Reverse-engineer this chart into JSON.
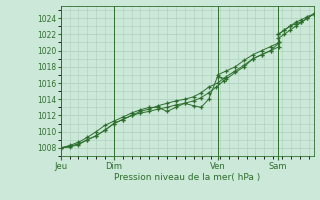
{
  "background_color": "#cce8d8",
  "grid_color": "#aacfba",
  "line_color": "#2d6e2d",
  "xlabel": "Pression niveau de la mer( hPa )",
  "ylim": [
    1007,
    1025.5
  ],
  "yticks": [
    1008,
    1010,
    1012,
    1014,
    1016,
    1018,
    1020,
    1022,
    1024
  ],
  "day_labels": [
    "Jeu",
    "Dim",
    "Ven",
    "Sam"
  ],
  "day_positions": [
    0.0,
    0.21,
    0.62,
    0.86
  ],
  "xlim": [
    0.0,
    1.0
  ],
  "series1_x": [
    0.0,
    0.035,
    0.07,
    0.105,
    0.14,
    0.175,
    0.21,
    0.245,
    0.28,
    0.315,
    0.35,
    0.385,
    0.42,
    0.455,
    0.49,
    0.525,
    0.555,
    0.585,
    0.615,
    0.645,
    0.62,
    0.655,
    0.69,
    0.725,
    0.76,
    0.795,
    0.83,
    0.865,
    0.86,
    0.883,
    0.906,
    0.929,
    0.952,
    0.975,
    1.0
  ],
  "series1_y": [
    1008.0,
    1008.2,
    1008.5,
    1009.0,
    1009.5,
    1010.2,
    1011.0,
    1011.5,
    1012.0,
    1012.3,
    1012.5,
    1012.8,
    1013.0,
    1013.3,
    1013.5,
    1013.8,
    1014.2,
    1014.8,
    1015.5,
    1016.3,
    1017.0,
    1017.5,
    1018.0,
    1018.8,
    1019.5,
    1020.0,
    1020.5,
    1021.0,
    1022.0,
    1022.5,
    1023.0,
    1023.3,
    1023.5,
    1024.0,
    1024.5
  ],
  "series2_x": [
    0.0,
    0.035,
    0.07,
    0.105,
    0.14,
    0.175,
    0.21,
    0.245,
    0.28,
    0.315,
    0.35,
    0.385,
    0.42,
    0.455,
    0.49,
    0.525,
    0.555,
    0.585,
    0.62,
    0.655,
    0.69,
    0.725,
    0.76,
    0.795,
    0.83,
    0.865,
    0.86,
    0.883,
    0.906,
    0.929,
    0.952,
    0.975,
    1.0
  ],
  "series2_y": [
    1008.0,
    1008.3,
    1008.7,
    1009.3,
    1010.0,
    1010.8,
    1011.3,
    1011.8,
    1012.3,
    1012.7,
    1013.0,
    1013.0,
    1012.5,
    1013.0,
    1013.5,
    1013.2,
    1013.0,
    1014.0,
    1016.8,
    1016.5,
    1017.3,
    1018.0,
    1019.0,
    1019.5,
    1020.0,
    1021.0,
    1022.0,
    1022.5,
    1023.0,
    1023.5,
    1023.8,
    1024.2,
    1024.5
  ],
  "series3_x": [
    0.0,
    0.035,
    0.07,
    0.105,
    0.14,
    0.175,
    0.21,
    0.245,
    0.28,
    0.315,
    0.35,
    0.385,
    0.42,
    0.455,
    0.49,
    0.525,
    0.555,
    0.585,
    0.62,
    0.655,
    0.69,
    0.725,
    0.76,
    0.795,
    0.83,
    0.865,
    0.86,
    0.883,
    0.906,
    0.929,
    0.952,
    0.975,
    1.0
  ],
  "series3_y": [
    1008.0,
    1008.1,
    1008.4,
    1009.0,
    1009.5,
    1010.2,
    1011.0,
    1011.5,
    1012.0,
    1012.5,
    1012.8,
    1013.2,
    1013.5,
    1013.8,
    1014.0,
    1014.3,
    1014.8,
    1015.5,
    1016.0,
    1016.8,
    1017.5,
    1018.2,
    1019.0,
    1019.5,
    1020.0,
    1020.5,
    1021.5,
    1022.0,
    1022.5,
    1023.0,
    1023.5,
    1024.0,
    1024.5
  ]
}
